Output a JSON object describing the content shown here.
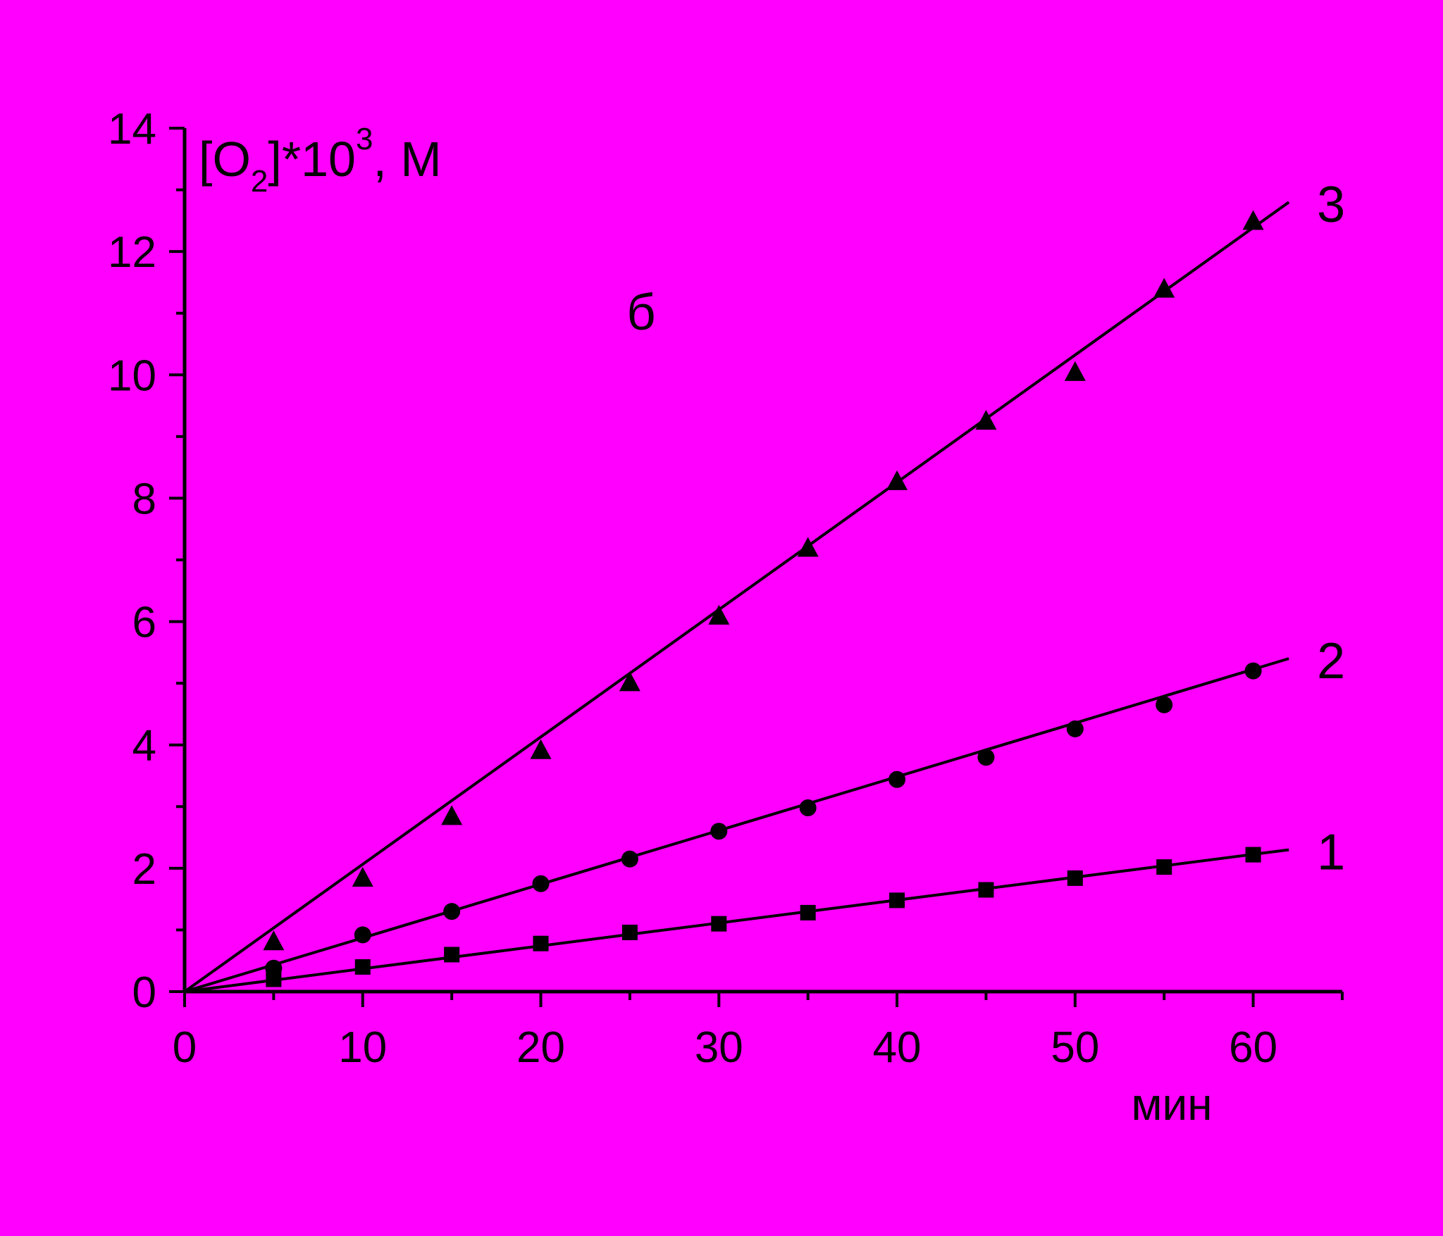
{
  "chart_data": {
    "type": "scatter",
    "title": "",
    "panel_label": "б",
    "ylabel": {
      "main": "[O",
      "sub": "2",
      "mid": "]*10",
      "sup": "3",
      "end": ", M"
    },
    "xlabel": "мин",
    "xlim": [
      0,
      65
    ],
    "ylim": [
      0,
      14
    ],
    "xticks": [
      0,
      10,
      20,
      30,
      40,
      50,
      60
    ],
    "yticks": [
      0,
      2,
      4,
      6,
      8,
      10,
      12,
      14
    ],
    "x": [
      5,
      10,
      15,
      20,
      25,
      30,
      35,
      40,
      45,
      50,
      55,
      60
    ],
    "series": [
      {
        "name": "1",
        "marker": "square",
        "values": [
          0.2,
          0.4,
          0.6,
          0.78,
          0.96,
          1.1,
          1.28,
          1.48,
          1.65,
          1.84,
          2.02,
          2.22
        ],
        "fit": {
          "x": [
            0,
            62
          ],
          "y": [
            0,
            2.3
          ]
        }
      },
      {
        "name": "2",
        "marker": "circle",
        "values": [
          0.38,
          0.92,
          1.3,
          1.75,
          2.15,
          2.6,
          2.98,
          3.44,
          3.8,
          4.26,
          4.65,
          5.2
        ],
        "fit": {
          "x": [
            0,
            62
          ],
          "y": [
            0,
            5.4
          ]
        }
      },
      {
        "name": "3",
        "marker": "triangle",
        "values": [
          0.82,
          1.85,
          2.85,
          3.92,
          5.02,
          6.1,
          7.2,
          8.28,
          9.26,
          10.05,
          11.4,
          12.5
        ],
        "fit": {
          "x": [
            0,
            62
          ],
          "y": [
            0,
            12.8
          ]
        }
      }
    ],
    "line_color": "#000000",
    "background": "#ff00ff"
  }
}
